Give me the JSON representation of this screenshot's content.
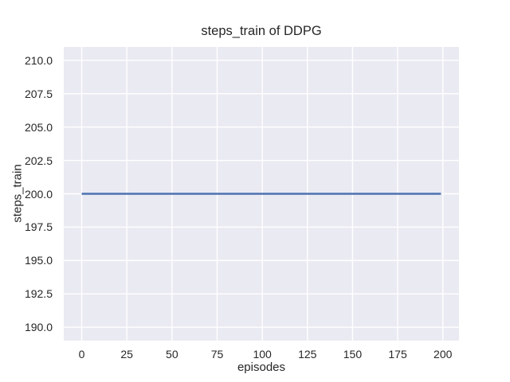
{
  "chart_data": {
    "type": "line",
    "title": "steps_train of DDPG",
    "xlabel": "episodes",
    "ylabel": "steps_train",
    "xlim": [
      -9.95,
      208.95
    ],
    "ylim": [
      189,
      211
    ],
    "xticks": [
      0,
      25,
      50,
      75,
      100,
      125,
      150,
      175,
      200
    ],
    "yticks": [
      190.0,
      192.5,
      195.0,
      197.5,
      200.0,
      202.5,
      205.0,
      207.5,
      210.0
    ],
    "ytick_decimals": 1,
    "grid": true,
    "legend": "none",
    "series": [
      {
        "name": "steps_train",
        "color": "#4c72b0",
        "x": [
          0,
          199
        ],
        "y": [
          200,
          200
        ]
      }
    ],
    "colors": {
      "figure_background": "#ffffff",
      "axes_background": "#eaeaf2",
      "grid": "#ffffff",
      "text": "#262626",
      "line": "#4c72b0"
    }
  }
}
